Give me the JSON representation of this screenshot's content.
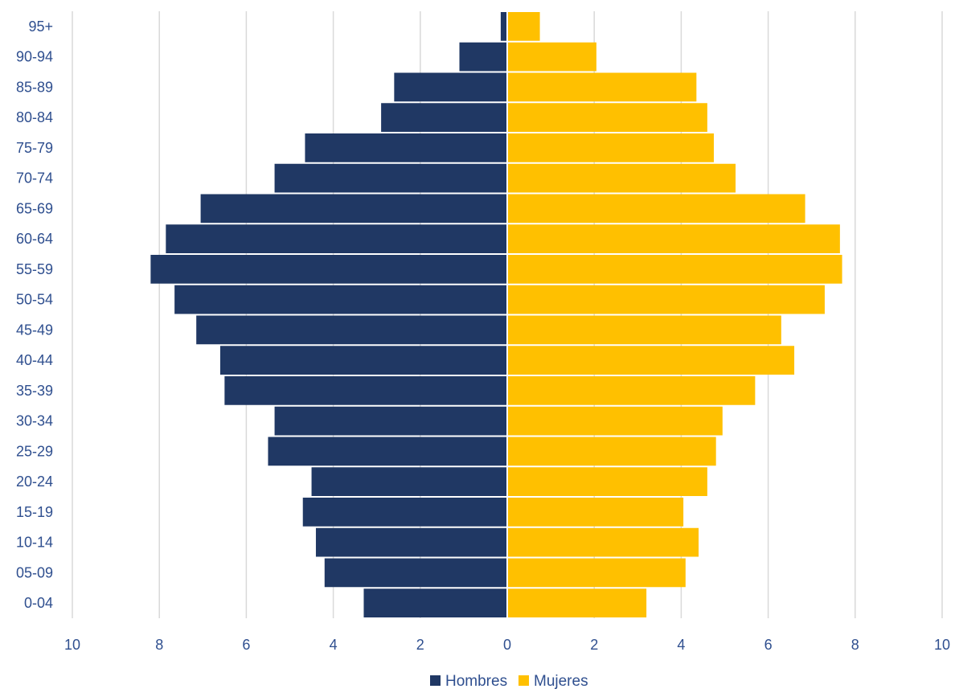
{
  "chart_data": {
    "type": "bar",
    "orientation": "horizontal",
    "subtype": "population-pyramid",
    "title": "",
    "xlabel": "",
    "ylabel": "",
    "categories": [
      "0-04",
      "05-09",
      "10-14",
      "15-19",
      "20-24",
      "25-29",
      "30-34",
      "35-39",
      "40-44",
      "45-49",
      "50-54",
      "55-59",
      "60-64",
      "65-69",
      "70-74",
      "75-79",
      "80-84",
      "85-89",
      "90-94",
      "95+"
    ],
    "series": [
      {
        "name": "Hombres",
        "color": "#203864",
        "side": "left",
        "values": [
          3.3,
          4.2,
          4.4,
          4.7,
          4.5,
          5.5,
          5.35,
          6.5,
          6.6,
          7.15,
          7.65,
          8.2,
          7.85,
          7.05,
          5.35,
          4.65,
          2.9,
          2.6,
          1.1,
          0.15
        ]
      },
      {
        "name": "Mujeres",
        "color": "#FFC000",
        "side": "right",
        "values": [
          3.2,
          4.1,
          4.4,
          4.05,
          4.6,
          4.8,
          4.95,
          5.7,
          6.6,
          6.3,
          7.3,
          7.7,
          7.65,
          6.85,
          5.25,
          4.75,
          4.6,
          4.35,
          2.05,
          0.75
        ]
      }
    ],
    "xlim": [
      -10,
      10
    ],
    "x_ticks": [
      -10,
      -8,
      -6,
      -4,
      -2,
      0,
      2,
      4,
      6,
      8,
      10
    ],
    "x_tick_labels": [
      "10",
      "8",
      "6",
      "4",
      "2",
      "0",
      "2",
      "4",
      "6",
      "8",
      "10"
    ],
    "grid": "vertical",
    "grid_color": "#D9D9D9",
    "axis_text_color": "#2F4F8F",
    "legend": {
      "position": "bottom",
      "entries": [
        "Hombres",
        "Mujeres"
      ]
    }
  }
}
